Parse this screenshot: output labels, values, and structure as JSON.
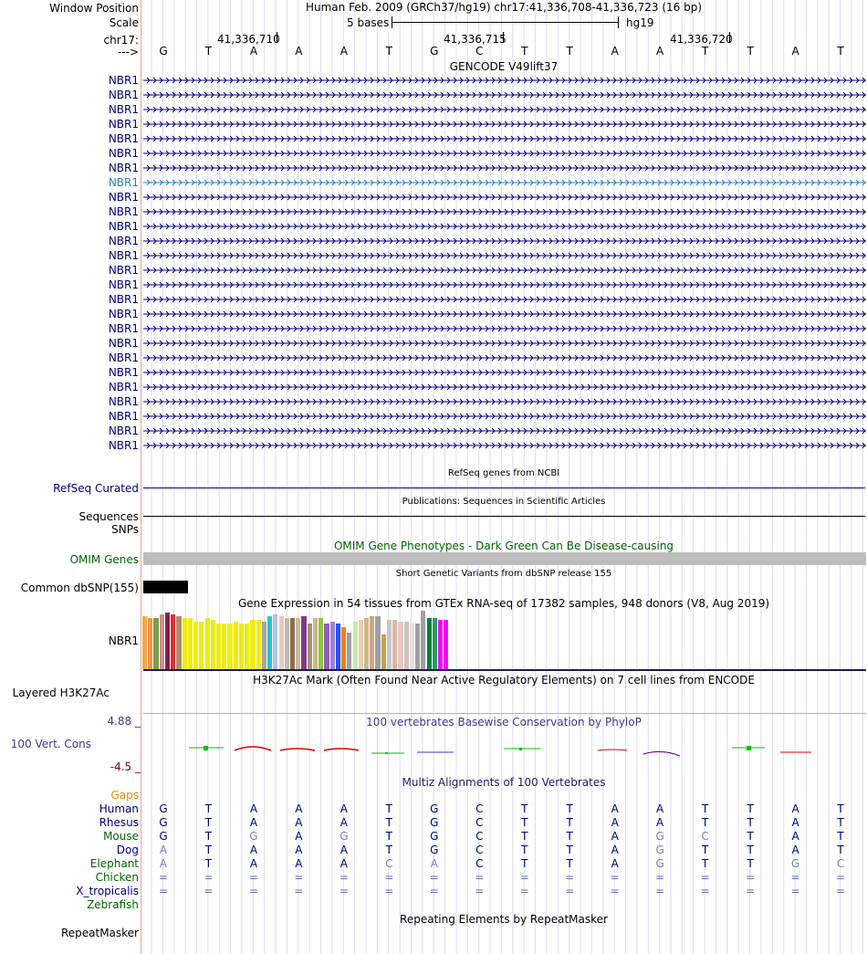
{
  "header": {
    "window_position_label": "Window Position",
    "scale_label": "Scale",
    "chrom_label": "chr17:",
    "arrow_label": "--->",
    "assembly_title": "Human Feb. 2009 (GRCh37/hg19)   chr17:41,336,708-41,336,723 (16 bp)",
    "scale_text": "5 bases",
    "scale_assembly": "hg19",
    "coords": [
      "41,336,710",
      "41,336,715",
      "41,336,720"
    ],
    "bases": [
      "G",
      "T",
      "A",
      "A",
      "A",
      "T",
      "G",
      "C",
      "T",
      "T",
      "A",
      "A",
      "T",
      "T",
      "A",
      "T"
    ]
  },
  "gencode": {
    "title": "GENCODE V49lift37",
    "gene_name": "NBR1",
    "highlighted_index": 7,
    "highlight_color": "#2c7fb8",
    "gene_color": "#000080",
    "rows": [
      "NBR1",
      "NBR1",
      "NBR1",
      "NBR1",
      "NBR1",
      "NBR1",
      "NBR1",
      "NBR1",
      "NBR1",
      "NBR1",
      "NBR1",
      "NBR1",
      "NBR1",
      "NBR1",
      "NBR1",
      "NBR1",
      "NBR1",
      "NBR1",
      "NBR1",
      "NBR1",
      "NBR1",
      "NBR1",
      "NBR1",
      "NBR1",
      "NBR1",
      "NBR1"
    ]
  },
  "refseq": {
    "title": "RefSeq genes from NCBI",
    "label": "RefSeq Curated"
  },
  "publications": {
    "title": "Publications: Sequences in Scientific Articles",
    "label1": "Sequences",
    "label2": "SNPs"
  },
  "omim": {
    "title": "OMIM Gene Phenotypes - Dark Green Can Be Disease-causing",
    "label": "OMIM Genes"
  },
  "dbsnp": {
    "title": "Short Genetic Variants from dbSNP release 155",
    "label": "Common dbSNP(155)"
  },
  "gtex": {
    "title": "Gene Expression in 54 tissues from GTEx RNA-seq of 17382 samples, 948 donors (V8, Aug 2019)",
    "label": "NBR1",
    "values": [
      58,
      56,
      56,
      60,
      62,
      60,
      58,
      56,
      56,
      52,
      52,
      56,
      54,
      50,
      50,
      50,
      52,
      50,
      50,
      54,
      54,
      52,
      58,
      60,
      58,
      56,
      56,
      56,
      58,
      50,
      56,
      56,
      50,
      52,
      50,
      46,
      40,
      52,
      54,
      56,
      58,
      58,
      38,
      54,
      54,
      52,
      52,
      50,
      50,
      64,
      56,
      56,
      54,
      54
    ],
    "colors": [
      "#f7a64b",
      "#ef9a3a",
      "#7d9b52",
      "#cc8f8a",
      "#8b1a4a",
      "#e0322b",
      "#b08a70",
      "#eded14",
      "#eded14",
      "#eded14",
      "#eded14",
      "#eded14",
      "#eded14",
      "#eded14",
      "#eded14",
      "#eded14",
      "#eded14",
      "#eded14",
      "#eded14",
      "#eded14",
      "#eded14",
      "#a6a6a6",
      "#28c3cc",
      "#b0c4de",
      "#e8c8bc",
      "#c8b8a8",
      "#8b6e50",
      "#d4b5a0",
      "#7e3a8a",
      "#a89070",
      "#c8b890",
      "#8ec63f",
      "#9060b8",
      "#9a82d8",
      "#2b4dff",
      "#ff7f0e",
      "#a0a0a0",
      "#c8e8b8",
      "#e8d0b0",
      "#d2b48c",
      "#c8aa88",
      "#a0a0a0",
      "#c8a050",
      "#c8c8c8",
      "#d8b8a8",
      "#e8c8c0",
      "#d0c0c0",
      "#e8e0e0",
      "#a0a0a0",
      "#a0a0a0",
      "#008040",
      "#20a060",
      "#ff00ff",
      "#ff00ff"
    ]
  },
  "h3k27ac": {
    "title": "H3K27Ac Mark (Often Found Near Active Regulatory Elements) on 7 cell lines from ENCODE",
    "label": "Layered H3K27Ac"
  },
  "phylop": {
    "title": "100 vertebrates Basewise Conservation by PhyloP",
    "label": "100 Vert. Cons",
    "max_label": "4.88 _",
    "min_label": "-4.5 _"
  },
  "multiz": {
    "title": "Multiz Alignments of 100 Vertebrates",
    "gaps_label": "Gaps",
    "species": [
      {
        "name": "Human",
        "color": "#000080",
        "seq": [
          "G",
          "T",
          "A",
          "A",
          "A",
          "T",
          "G",
          "C",
          "T",
          "T",
          "A",
          "A",
          "T",
          "T",
          "A",
          "T"
        ],
        "dim": []
      },
      {
        "name": "Rhesus",
        "color": "#000080",
        "seq": [
          "G",
          "T",
          "A",
          "A",
          "A",
          "T",
          "G",
          "C",
          "T",
          "T",
          "A",
          "A",
          "T",
          "T",
          "A",
          "T"
        ],
        "dim": []
      },
      {
        "name": "Mouse",
        "color": "#006400",
        "seq": [
          "G",
          "T",
          "G",
          "A",
          "G",
          "T",
          "G",
          "C",
          "T",
          "T",
          "A",
          "G",
          "C",
          "T",
          "A",
          "T"
        ],
        "dim": [
          2,
          4,
          11,
          12
        ]
      },
      {
        "name": "Dog",
        "color": "#000080",
        "seq": [
          "A",
          "T",
          "A",
          "A",
          "A",
          "T",
          "G",
          "C",
          "T",
          "T",
          "A",
          "G",
          "T",
          "T",
          "A",
          "T"
        ],
        "dim": [
          0,
          11
        ]
      },
      {
        "name": "Elephant",
        "color": "#006400",
        "seq": [
          "A",
          "T",
          "A",
          "A",
          "A",
          "C",
          "A",
          "C",
          "T",
          "T",
          "A",
          "G",
          "T",
          "T",
          "G",
          "C"
        ],
        "dim": [
          0,
          5,
          6,
          11,
          14,
          15
        ]
      },
      {
        "name": "Chicken",
        "color": "#006400",
        "seq": [
          "=",
          "=",
          "=",
          "=",
          "=",
          "=",
          "=",
          "=",
          "=",
          "=",
          "=",
          "=",
          "=",
          "=",
          "=",
          "="
        ],
        "dim": []
      },
      {
        "name": "X_tropicalis",
        "color": "#000080",
        "seq": [
          "=",
          "=",
          "=",
          "=",
          "=",
          "=",
          "=",
          "=",
          "=",
          "=",
          "=",
          "=",
          "=",
          "=",
          "=",
          "="
        ],
        "dim": []
      },
      {
        "name": "Zebrafish",
        "color": "#006400",
        "seq": [
          "",
          "",
          "",
          "",
          "",
          "",
          "",
          "",
          "",
          "",
          "",
          "",
          "",
          "",
          "",
          ""
        ],
        "dim": []
      }
    ]
  },
  "repeatmasker": {
    "title": "Repeating Elements by RepeatMasker",
    "label": "RepeatMasker"
  }
}
